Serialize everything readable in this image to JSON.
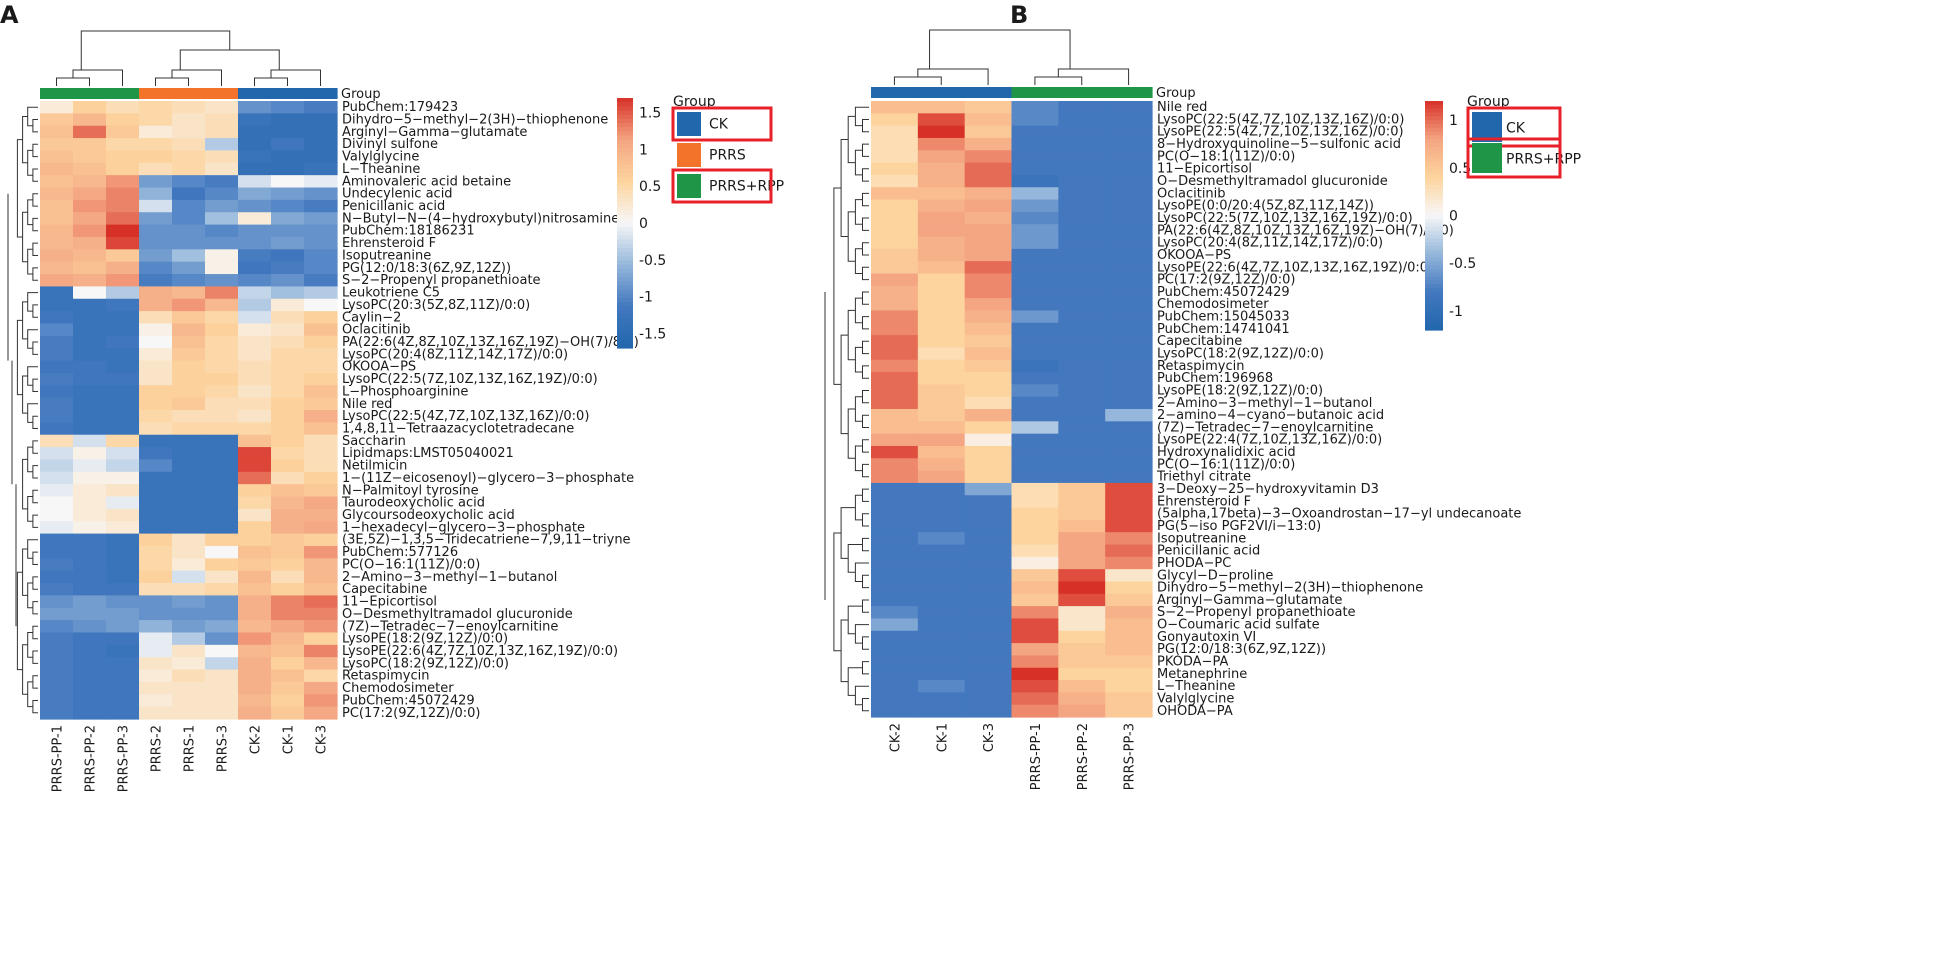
{
  "chart_data": [
    {
      "panel": "A",
      "type": "heatmap",
      "columns": [
        "PRRS-PP-1",
        "PRRS-PP-2",
        "PRRS-PP-3",
        "PRRS-2",
        "PRRS-1",
        "PRRS-3",
        "CK-2",
        "CK-1",
        "CK-3"
      ],
      "column_groups": [
        "PRRS+RPP",
        "PRRS+RPP",
        "PRRS+RPP",
        "PRRS",
        "PRRS",
        "PRRS",
        "CK",
        "CK",
        "CK"
      ],
      "group_label": "Group",
      "legend_title": "Group",
      "legend_groups": [
        {
          "name": "CK",
          "color": "#2167AC",
          "highlight": true
        },
        {
          "name": "PRRS",
          "color": "#F4732A",
          "highlight": false
        },
        {
          "name": "PRRS+RPP",
          "color": "#1F9547",
          "highlight": true
        }
      ],
      "colorbar": {
        "min": -1.7,
        "max": 1.7,
        "ticks": [
          "1.5",
          "1",
          "0.5",
          "0",
          "-0.5",
          "-1",
          "-1.5"
        ],
        "tick_values": [
          1.5,
          1,
          0.5,
          0,
          -0.5,
          -1,
          -1.5
        ]
      },
      "rows": [
        "PubChem:179423",
        "Dihydro−5−methyl−2(3H)−thiophenone",
        "Arginyl−Gamma−glutamate",
        "Divinyl sulfone",
        "Valylglycine",
        "L−Theanine",
        "Aminovaleric acid betaine",
        "Undecylenic acid",
        "Penicillanic acid",
        "N−Butyl−N−(4−hydroxybutyl)nitrosamine",
        "PubChem:18186231",
        "Ehrensteroid F",
        "Isoputreanine",
        "PG(12:0/18:3(6Z,9Z,12Z))",
        "S−2−Propenyl propanethioate",
        "Leukotriene C5",
        "LysoPC(20:3(5Z,8Z,11Z)/0:0)",
        "Caylin−2",
        "Oclacitinib",
        "PA(22:6(4Z,8Z,10Z,13Z,16Z,19Z)−OH(7)/8:0)",
        "LysoPC(20:4(8Z,11Z,14Z,17Z)/0:0)",
        "OKOOA−PS",
        "LysoPC(22:5(7Z,10Z,13Z,16Z,19Z)/0:0)",
        "L−Phosphoarginine",
        "Nile red",
        "LysoPC(22:5(4Z,7Z,10Z,13Z,16Z)/0:0)",
        "1,4,8,11−Tetraazacyclotetradecane",
        "Saccharin",
        "Lipidmaps:LMST05040021",
        "Netilmicin",
        "1−(11Z−eicosenoyl)−glycero−3−phosphate",
        "N−Palmitoyl tyrosine",
        "Taurodeoxycholic acid",
        "Glycoursodeoxycholic acid",
        "1−hexadecyl−glycero−3−phosphate",
        "(3E,5Z)−1,3,5−Tridecatriene−7,9,11−triyne",
        "PubChem:577126",
        "PC(O−16:1(11Z)/0:0)",
        "2−Amino−3−methyl−1−butanol",
        "Capecitabine",
        "11−Epicortisol",
        "O−Desmethyltramadol glucuronide",
        "(7Z)−Tetradec−7−enoylcarnitine",
        "LysoPE(18:2(9Z,12Z)/0:0)",
        "LysoPE(22:6(4Z,7Z,10Z,13Z,16Z,19Z)/0:0)",
        "LysoPC(18:2(9Z,12Z)/0:0)",
        "Retaspimycin",
        "Chemodosimeter",
        "PubChem:45072429",
        "PC(17:2(9Z,12Z)/0:0)"
      ],
      "values": [
        [
          0.2,
          0.6,
          0.4,
          0.5,
          0.4,
          0.3,
          -0.9,
          -1.0,
          -1.1
        ],
        [
          0.7,
          0.9,
          0.6,
          0.5,
          0.3,
          0.4,
          -1.3,
          -1.4,
          -1.4
        ],
        [
          0.8,
          1.4,
          0.7,
          0.2,
          0.3,
          0.4,
          -1.4,
          -1.4,
          -1.4
        ],
        [
          0.7,
          0.7,
          0.5,
          0.5,
          0.4,
          -0.4,
          -1.4,
          -1.2,
          -1.4
        ],
        [
          0.8,
          0.7,
          0.6,
          0.6,
          0.5,
          0.4,
          -1.3,
          -1.4,
          -1.4
        ],
        [
          0.9,
          0.8,
          0.6,
          0.4,
          0.5,
          0.3,
          -1.4,
          -1.4,
          -1.3
        ],
        [
          0.8,
          0.9,
          1.2,
          -0.8,
          -1.0,
          -1.1,
          -0.2,
          0.0,
          -0.1
        ],
        [
          0.9,
          1.1,
          1.3,
          -0.6,
          -1.2,
          -1.0,
          -0.7,
          -0.8,
          -0.9
        ],
        [
          0.8,
          1.2,
          1.3,
          -0.2,
          -1.0,
          -0.8,
          -0.9,
          -1.0,
          -1.1
        ],
        [
          0.8,
          1.1,
          1.4,
          -0.8,
          -1.0,
          -0.5,
          0.2,
          -0.7,
          -0.8
        ],
        [
          0.9,
          1.2,
          1.7,
          -0.9,
          -0.9,
          -1.0,
          -0.9,
          -0.9,
          -0.9
        ],
        [
          0.9,
          1.0,
          1.6,
          -0.9,
          -0.9,
          -0.9,
          -0.9,
          -0.8,
          -0.9
        ],
        [
          1.0,
          0.9,
          0.7,
          -0.8,
          -0.5,
          0.1,
          -1.1,
          -1.2,
          -1.0
        ],
        [
          0.9,
          0.8,
          1.0,
          -1.0,
          -0.8,
          0.1,
          -1.2,
          -1.1,
          -1.0
        ],
        [
          1.1,
          1.0,
          1.2,
          -1.1,
          -1.0,
          -0.9,
          -1.0,
          -0.9,
          -1.1
        ],
        [
          -1.3,
          0.0,
          -0.4,
          1.0,
          0.9,
          1.3,
          -0.3,
          -0.5,
          -0.4
        ],
        [
          -1.3,
          -1.3,
          -1.2,
          1.0,
          1.2,
          0.9,
          -0.4,
          0.2,
          0.0
        ],
        [
          -1.2,
          -1.3,
          -1.3,
          0.4,
          0.7,
          0.5,
          -0.2,
          0.4,
          0.6
        ],
        [
          -1.0,
          -1.3,
          -1.3,
          0.1,
          0.9,
          0.6,
          0.2,
          0.3,
          0.8
        ],
        [
          -1.1,
          -1.3,
          -1.2,
          0.0,
          0.8,
          0.5,
          0.3,
          0.4,
          0.6
        ],
        [
          -1.1,
          -1.3,
          -1.3,
          0.2,
          0.7,
          0.5,
          0.3,
          0.5,
          0.5
        ],
        [
          -1.2,
          -1.2,
          -1.3,
          0.3,
          0.6,
          0.5,
          0.4,
          0.5,
          0.5
        ],
        [
          -1.1,
          -1.2,
          -1.2,
          0.3,
          0.6,
          0.6,
          0.4,
          0.5,
          0.6
        ],
        [
          -1.2,
          -1.3,
          -1.3,
          0.6,
          0.6,
          0.5,
          0.3,
          0.5,
          0.8
        ],
        [
          -1.1,
          -1.3,
          -1.3,
          0.6,
          0.7,
          0.4,
          0.4,
          0.6,
          0.7
        ],
        [
          -1.1,
          -1.3,
          -1.3,
          0.5,
          0.4,
          0.4,
          0.3,
          0.6,
          1.0
        ],
        [
          -1.2,
          -1.3,
          -1.3,
          0.4,
          0.5,
          0.5,
          0.5,
          0.6,
          0.8
        ],
        [
          0.4,
          -0.2,
          0.5,
          -1.3,
          -1.3,
          -1.3,
          0.8,
          0.6,
          0.4
        ],
        [
          -0.2,
          0.1,
          -0.2,
          -1.2,
          -1.3,
          -1.3,
          1.6,
          0.5,
          0.4
        ],
        [
          -0.3,
          -0.1,
          -0.3,
          -1.0,
          -1.3,
          -1.3,
          1.6,
          0.6,
          0.4
        ],
        [
          -0.2,
          0.1,
          0.1,
          -1.3,
          -1.3,
          -1.3,
          1.4,
          0.4,
          0.6
        ],
        [
          -0.1,
          0.2,
          0.3,
          -1.3,
          -1.3,
          -1.3,
          0.6,
          0.8,
          0.7
        ],
        [
          0.0,
          0.2,
          -0.1,
          -1.3,
          -1.3,
          -1.3,
          0.5,
          0.9,
          1.1
        ],
        [
          0.0,
          0.2,
          0.3,
          -1.3,
          -1.3,
          -1.3,
          0.3,
          1.0,
          1.0
        ],
        [
          -0.1,
          0.1,
          0.2,
          -1.3,
          -1.3,
          -1.3,
          0.6,
          1.0,
          1.1
        ],
        [
          -1.2,
          -1.2,
          -1.3,
          0.6,
          0.3,
          0.6,
          0.6,
          0.7,
          0.6
        ],
        [
          -1.2,
          -1.2,
          -1.3,
          0.5,
          0.3,
          0.0,
          0.8,
          0.7,
          1.2
        ],
        [
          -1.1,
          -1.2,
          -1.3,
          0.5,
          0.2,
          0.6,
          0.7,
          0.6,
          0.9
        ],
        [
          -1.2,
          -1.2,
          -1.3,
          0.6,
          -0.2,
          0.3,
          0.9,
          0.4,
          0.9
        ],
        [
          -1.1,
          -1.2,
          -1.2,
          0.4,
          0.4,
          0.5,
          0.8,
          0.6,
          0.8
        ],
        [
          -0.9,
          -0.8,
          -0.9,
          -0.9,
          -0.8,
          -0.9,
          1.0,
          1.3,
          1.4
        ],
        [
          -0.8,
          -0.8,
          -0.8,
          -0.9,
          -0.9,
          -0.9,
          1.0,
          1.3,
          1.3
        ],
        [
          -1.0,
          -0.9,
          -0.8,
          -0.6,
          -0.8,
          -0.7,
          0.9,
          1.1,
          1.2
        ],
        [
          -1.1,
          -1.2,
          -1.2,
          -0.1,
          -0.4,
          -0.9,
          1.2,
          0.9,
          0.6
        ],
        [
          -1.1,
          -1.2,
          -1.3,
          -0.1,
          0.3,
          0.0,
          0.9,
          0.8,
          1.3
        ],
        [
          -1.1,
          -1.2,
          -1.2,
          0.3,
          0.2,
          -0.3,
          1.0,
          0.6,
          0.9
        ],
        [
          -1.1,
          -1.2,
          -1.2,
          0.2,
          0.4,
          0.3,
          1.0,
          0.8,
          0.5
        ],
        [
          -1.1,
          -1.2,
          -1.2,
          0.3,
          0.3,
          0.3,
          1.0,
          0.7,
          1.1
        ],
        [
          -1.1,
          -1.2,
          -1.2,
          0.2,
          0.3,
          0.3,
          0.9,
          0.6,
          1.2
        ],
        [
          -1.1,
          -1.2,
          -1.2,
          0.3,
          0.3,
          0.3,
          1.0,
          0.7,
          1.1
        ]
      ]
    },
    {
      "panel": "B",
      "type": "heatmap",
      "columns": [
        "CK-2",
        "CK-1",
        "CK-3",
        "PRRS-PP-1",
        "PRRS-PP-2",
        "PRRS-PP-3"
      ],
      "column_groups": [
        "CK",
        "CK",
        "CK",
        "PRRS+RPP",
        "PRRS+RPP",
        "PRRS+RPP"
      ],
      "group_label": "Group",
      "legend_title": "Group",
      "legend_groups": [
        {
          "name": "CK",
          "color": "#2167AC",
          "highlight": true
        },
        {
          "name": "PRRS+RPP",
          "color": "#1F9547",
          "highlight": true
        }
      ],
      "colorbar": {
        "min": -1.2,
        "max": 1.2,
        "ticks": [
          "1",
          "0.5",
          "0",
          "-0.5",
          "-1"
        ],
        "tick_values": [
          1,
          0.5,
          0,
          -0.5,
          -1
        ]
      },
      "rows": [
        "Nile red",
        "LysoPC(22:5(4Z,7Z,10Z,13Z,16Z)/0:0)",
        "LysoPE(22:5(4Z,7Z,10Z,13Z,16Z)/0:0)",
        "8−Hydroxyquinoline−5−sulfonic acid",
        "PC(O−18:1(11Z)/0:0)",
        "11−Epicortisol",
        "O−Desmethyltramadol glucuronide",
        "Oclacitinib",
        "LysoPE(0:0/20:4(5Z,8Z,11Z,14Z))",
        "LysoPC(22:5(7Z,10Z,13Z,16Z,19Z)/0:0)",
        "PA(22:6(4Z,8Z,10Z,13Z,16Z,19Z)−OH(7)/8:0)",
        "LysoPC(20:4(8Z,11Z,14Z,17Z)/0:0)",
        "OKOOA−PS",
        "LysoPE(22:6(4Z,7Z,10Z,13Z,16Z,19Z)/0:0)",
        "PC(17:2(9Z,12Z)/0:0)",
        "PubChem:45072429",
        "Chemodosimeter",
        "PubChem:15045033",
        "PubChem:14741041",
        "Capecitabine",
        "LysoPC(18:2(9Z,12Z)/0:0)",
        "Retaspimycin",
        "PubChem:196968",
        "LysoPE(18:2(9Z,12Z)/0:0)",
        "2−Amino−3−methyl−1−butanol",
        "2−amino−4−cyano−butanoic acid",
        "(7Z)−Tetradec−7−enoylcarnitine",
        "LysoPE(22:4(7Z,10Z,13Z,16Z)/0:0)",
        "Hydroxynalidixic acid",
        "PC(O−16:1(11Z)/0:0)",
        "Triethyl citrate",
        "3−Deoxy−25−hydroxyvitamin D3",
        "Ehrensteroid F",
        "(5alpha,17beta)−3−Oxoandrostan−17−yl undecanoate",
        "PG(5−iso PGF2VI/i−13:0)",
        "Isoputreanine",
        "Penicillanic acid",
        "PHODA−PC",
        "Glycyl−D−proline",
        "Dihydro−5−methyl−2(3H)−thiophenone",
        "Arginyl−Gamma−glutamate",
        "S−2−Propenyl propanethioate",
        "O−Coumaric acid sulfate",
        "Gonyautoxin VI",
        "PG(12:0/18:3(6Z,9Z,12Z))",
        "PKODA−PA",
        "Metanephrine",
        "L−Theanine",
        "Valylglycine",
        "OHODA−PA"
      ],
      "values": [
        [
          0.6,
          0.6,
          0.5,
          -0.7,
          -0.8,
          -0.8
        ],
        [
          0.4,
          1.1,
          0.6,
          -0.7,
          -0.8,
          -0.8
        ],
        [
          0.3,
          1.2,
          0.5,
          -0.8,
          -0.8,
          -0.8
        ],
        [
          0.3,
          0.9,
          0.7,
          -0.8,
          -0.8,
          -0.8
        ],
        [
          0.3,
          0.8,
          0.9,
          -0.8,
          -0.8,
          -0.8
        ],
        [
          0.4,
          0.7,
          1.0,
          -0.8,
          -0.8,
          -0.8
        ],
        [
          0.3,
          0.7,
          1.0,
          -0.9,
          -0.8,
          -0.8
        ],
        [
          0.6,
          0.6,
          0.7,
          -0.4,
          -0.8,
          -0.8
        ],
        [
          0.4,
          0.7,
          0.8,
          -0.6,
          -0.8,
          -0.8
        ],
        [
          0.4,
          0.8,
          0.7,
          -0.7,
          -0.8,
          -0.8
        ],
        [
          0.4,
          0.8,
          0.8,
          -0.6,
          -0.8,
          -0.8
        ],
        [
          0.4,
          0.7,
          0.8,
          -0.6,
          -0.8,
          -0.8
        ],
        [
          0.5,
          0.7,
          0.8,
          -0.8,
          -0.8,
          -0.8
        ],
        [
          0.5,
          0.6,
          1.0,
          -0.8,
          -0.8,
          -0.8
        ],
        [
          0.8,
          0.4,
          0.9,
          -0.8,
          -0.8,
          -0.8
        ],
        [
          0.7,
          0.4,
          0.9,
          -0.8,
          -0.8,
          -0.8
        ],
        [
          0.7,
          0.4,
          0.8,
          -0.8,
          -0.8,
          -0.8
        ],
        [
          0.9,
          0.4,
          0.7,
          -0.6,
          -0.8,
          -0.8
        ],
        [
          0.9,
          0.4,
          0.6,
          -0.8,
          -0.8,
          -0.8
        ],
        [
          1.0,
          0.4,
          0.5,
          -0.8,
          -0.8,
          -0.8
        ],
        [
          1.0,
          0.3,
          0.6,
          -0.8,
          -0.8,
          -0.8
        ],
        [
          0.9,
          0.4,
          0.5,
          -0.9,
          -0.8,
          -0.8
        ],
        [
          1.0,
          0.4,
          0.4,
          -0.8,
          -0.8,
          -0.8
        ],
        [
          1.0,
          0.5,
          0.4,
          -0.7,
          -0.8,
          -0.8
        ],
        [
          1.0,
          0.5,
          0.3,
          -0.8,
          -0.8,
          -0.8
        ],
        [
          0.6,
          0.5,
          0.7,
          -0.8,
          -0.8,
          -0.4
        ],
        [
          0.6,
          0.6,
          0.4,
          -0.3,
          -0.8,
          -0.8
        ],
        [
          0.8,
          0.8,
          0.1,
          -0.8,
          -0.8,
          -0.8
        ],
        [
          1.1,
          0.6,
          0.4,
          -0.8,
          -0.8,
          -0.8
        ],
        [
          0.9,
          0.7,
          0.4,
          -0.8,
          -0.8,
          -0.8
        ],
        [
          0.9,
          0.8,
          0.4,
          -0.8,
          -0.8,
          -0.8
        ],
        [
          -0.8,
          -0.8,
          -0.5,
          0.3,
          0.5,
          1.1
        ],
        [
          -0.8,
          -0.8,
          -0.8,
          0.3,
          0.5,
          1.1
        ],
        [
          -0.8,
          -0.8,
          -0.8,
          0.4,
          0.5,
          1.1
        ],
        [
          -0.8,
          -0.8,
          -0.8,
          0.4,
          0.6,
          1.1
        ],
        [
          -0.8,
          -0.7,
          -0.8,
          0.4,
          0.8,
          0.9
        ],
        [
          -0.8,
          -0.8,
          -0.8,
          0.3,
          0.8,
          1.0
        ],
        [
          -0.8,
          -0.8,
          -0.8,
          0.1,
          0.8,
          0.9
        ],
        [
          -0.8,
          -0.8,
          -0.8,
          0.5,
          1.1,
          0.2
        ],
        [
          -0.8,
          -0.8,
          -0.8,
          0.6,
          1.2,
          0.4
        ],
        [
          -0.8,
          -0.8,
          -0.8,
          0.5,
          1.1,
          0.5
        ],
        [
          -0.7,
          -0.8,
          -0.8,
          0.9,
          0.2,
          0.7
        ],
        [
          -0.5,
          -0.8,
          -0.8,
          1.1,
          0.2,
          0.6
        ],
        [
          -0.8,
          -0.8,
          -0.8,
          1.1,
          0.4,
          0.6
        ],
        [
          -0.8,
          -0.8,
          -0.8,
          0.8,
          0.5,
          0.6
        ],
        [
          -0.8,
          -0.8,
          -0.8,
          0.9,
          0.5,
          0.5
        ],
        [
          -0.8,
          -0.8,
          -0.8,
          1.2,
          0.4,
          0.4
        ],
        [
          -0.8,
          -0.7,
          -0.8,
          1.1,
          0.6,
          0.4
        ],
        [
          -0.8,
          -0.8,
          -0.8,
          1.0,
          0.7,
          0.5
        ],
        [
          -0.8,
          -0.8,
          -0.8,
          0.9,
          0.8,
          0.5
        ]
      ]
    }
  ],
  "panel_labels": [
    "A",
    "B"
  ]
}
